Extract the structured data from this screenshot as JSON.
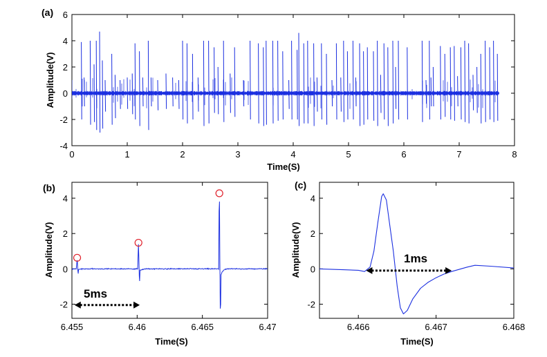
{
  "chart_data": [
    {
      "panel": "(a)",
      "type": "line",
      "xlabel": "Time(S)",
      "ylabel": "Amplitude(V)",
      "xlim": [
        0,
        8
      ],
      "ylim": [
        -4,
        6
      ],
      "xticks": [
        0,
        1,
        2,
        3,
        4,
        5,
        6,
        7,
        8
      ],
      "yticks": [
        -4,
        -2,
        0,
        2,
        4,
        6
      ],
      "signal_end": 7.72,
      "noise_amplitude": 0.12,
      "color": "#1a2ee0",
      "spikes": [
        [
          0.17,
          3.9,
          -2.0
        ],
        [
          0.22,
          1.2,
          -1.0
        ],
        [
          0.33,
          4.0,
          -2.4
        ],
        [
          0.4,
          2.2,
          -2.2
        ],
        [
          0.44,
          4.0,
          -2.8
        ],
        [
          0.5,
          4.7,
          -3.0
        ],
        [
          0.55,
          2.5,
          -2.7
        ],
        [
          0.6,
          1.0,
          -1.4
        ],
        [
          0.72,
          3.0,
          -2.4
        ],
        [
          0.78,
          1.4,
          -1.9
        ],
        [
          0.87,
          1.0,
          -1.2
        ],
        [
          1.0,
          1.2,
          -1.2
        ],
        [
          1.09,
          1.5,
          -1.6
        ],
        [
          1.14,
          3.8,
          -2.0
        ],
        [
          1.22,
          3.2,
          -2.5
        ],
        [
          1.28,
          1.2,
          -1.0
        ],
        [
          1.38,
          4.0,
          -2.8
        ],
        [
          1.43,
          1.2,
          -1.0
        ],
        [
          1.55,
          1.0,
          -1.3
        ],
        [
          1.7,
          1.5,
          -1.2
        ],
        [
          1.82,
          1.2,
          -1.0
        ],
        [
          1.93,
          1.0,
          -1.2
        ],
        [
          2.0,
          4.0,
          -2.0
        ],
        [
          2.08,
          3.8,
          -2.3
        ],
        [
          2.18,
          3.0,
          -2.0
        ],
        [
          2.28,
          1.2,
          -1.4
        ],
        [
          2.38,
          4.0,
          -2.5
        ],
        [
          2.47,
          4.0,
          -2.3
        ],
        [
          2.57,
          3.5,
          -1.5
        ],
        [
          2.64,
          2.0,
          -1.6
        ],
        [
          2.74,
          4.0,
          -2.2
        ],
        [
          2.86,
          1.5,
          -1.5
        ],
        [
          2.94,
          3.5,
          -1.8
        ],
        [
          3.1,
          1.0,
          -1.0
        ],
        [
          3.22,
          4.0,
          -2.0
        ],
        [
          3.37,
          3.8,
          -2.3
        ],
        [
          3.46,
          3.5,
          -2.5
        ],
        [
          3.51,
          4.0,
          -2.4
        ],
        [
          3.63,
          4.0,
          -2.3
        ],
        [
          3.72,
          4.0,
          -2.1
        ],
        [
          3.81,
          3.2,
          -2.0
        ],
        [
          3.92,
          1.0,
          -1.2
        ],
        [
          3.97,
          4.0,
          -2.0
        ],
        [
          4.07,
          3.3,
          -2.0
        ],
        [
          4.1,
          4.6,
          -2.5
        ],
        [
          4.19,
          3.8,
          -2.3
        ],
        [
          4.26,
          4.0,
          -2.3
        ],
        [
          4.37,
          3.8,
          -2.5
        ],
        [
          4.43,
          1.2,
          -1.4
        ],
        [
          4.51,
          3.8,
          -2.0
        ],
        [
          4.6,
          3.0,
          -2.4
        ],
        [
          4.7,
          1.0,
          -1.0
        ],
        [
          4.78,
          3.8,
          -2.0
        ],
        [
          4.86,
          1.2,
          -1.4
        ],
        [
          4.91,
          4.0,
          -2.2
        ],
        [
          4.98,
          3.2,
          -2.0
        ],
        [
          5.08,
          4.0,
          -2.0
        ],
        [
          5.13,
          1.2,
          -1.0
        ],
        [
          5.2,
          3.8,
          -2.5
        ],
        [
          5.27,
          3.2,
          -2.4
        ],
        [
          5.34,
          3.5,
          -2.0
        ],
        [
          5.45,
          3.2,
          -2.1
        ],
        [
          5.52,
          4.0,
          -2.5
        ],
        [
          5.58,
          1.4,
          -1.5
        ],
        [
          5.64,
          3.8,
          -2.0
        ],
        [
          5.71,
          3.5,
          -2.5
        ],
        [
          5.8,
          4.0,
          -2.3
        ],
        [
          5.85,
          2.0,
          -1.2
        ],
        [
          5.9,
          4.0,
          -2.0
        ],
        [
          6.06,
          3.5,
          -2.0
        ],
        [
          6.33,
          4.0,
          -2.2
        ],
        [
          6.4,
          1.0,
          -0.8
        ],
        [
          6.46,
          4.0,
          -2.0
        ],
        [
          6.49,
          1.2,
          -1.0
        ],
        [
          6.53,
          2.0,
          -1.0
        ],
        [
          6.66,
          3.6,
          -2.0
        ],
        [
          6.74,
          3.0,
          -1.8
        ],
        [
          6.84,
          3.5,
          -2.0
        ],
        [
          6.91,
          3.6,
          -2.1
        ],
        [
          6.97,
          1.3,
          -1.0
        ],
        [
          7.03,
          3.5,
          -2.0
        ],
        [
          7.1,
          4.0,
          -2.2
        ],
        [
          7.17,
          3.8,
          -2.3
        ],
        [
          7.25,
          1.4,
          -1.3
        ],
        [
          7.32,
          2.0,
          -1.5
        ],
        [
          7.39,
          3.0,
          -2.3
        ],
        [
          7.47,
          4.0,
          -2.2
        ],
        [
          7.55,
          3.5,
          -2.0
        ],
        [
          7.62,
          4.0,
          -2.2
        ],
        [
          7.69,
          3.0,
          -2.1
        ]
      ]
    },
    {
      "panel": "(b)",
      "type": "line",
      "xlabel": "Time(S)",
      "ylabel": "Amplitude(V)",
      "xlim": [
        6.455,
        6.47
      ],
      "ylim": [
        -2.8,
        4.9
      ],
      "xticks": [
        6.455,
        6.46,
        6.465,
        6.47
      ],
      "yticks": [
        -2,
        0,
        2,
        4
      ],
      "color": "#1a2ee0",
      "spikes": [
        {
          "t": 6.4554,
          "peak": 0.55,
          "trough": -0.3
        },
        {
          "t": 6.4601,
          "peak": 1.4,
          "trough": -0.75
        },
        {
          "t": 6.4663,
          "peak": 4.2,
          "trough": -2.6
        }
      ],
      "marker_color": "#e0202a",
      "annotation": {
        "text": "5ms",
        "x_start": 6.4552,
        "x_end": 6.4602,
        "y": -2.05
      }
    },
    {
      "panel": "(c)",
      "type": "line",
      "xlabel": "Time(S)",
      "ylabel": "Amplitude(V)",
      "xlim": [
        6.4655,
        6.468
      ],
      "ylim": [
        -2.8,
        4.9
      ],
      "xticks": [
        6.466,
        6.467,
        6.468
      ],
      "yticks": [
        -2,
        0,
        2,
        4
      ],
      "color": "#1a2ee0",
      "waveform": [
        [
          6.4655,
          0.0
        ],
        [
          6.4658,
          -0.05
        ],
        [
          6.466,
          -0.08
        ],
        [
          6.46608,
          -0.15
        ],
        [
          6.46615,
          0.1
        ],
        [
          6.4662,
          1.0
        ],
        [
          6.46625,
          2.6
        ],
        [
          6.4663,
          4.1
        ],
        [
          6.46632,
          4.25
        ],
        [
          6.46636,
          3.9
        ],
        [
          6.4664,
          2.6
        ],
        [
          6.46645,
          1.0
        ],
        [
          6.4665,
          -1.0
        ],
        [
          6.46654,
          -2.2
        ],
        [
          6.46658,
          -2.55
        ],
        [
          6.46663,
          -2.35
        ],
        [
          6.4667,
          -1.7
        ],
        [
          6.4668,
          -1.1
        ],
        [
          6.4669,
          -0.75
        ],
        [
          6.467,
          -0.5
        ],
        [
          6.4671,
          -0.3
        ],
        [
          6.4672,
          -0.15
        ],
        [
          6.4674,
          0.1
        ],
        [
          6.4675,
          0.2
        ],
        [
          6.4677,
          0.15
        ],
        [
          6.468,
          0.05
        ]
      ],
      "annotation": {
        "text": "1ms",
        "x_start": 6.4661,
        "x_end": 6.4672,
        "y": -0.1
      }
    }
  ]
}
